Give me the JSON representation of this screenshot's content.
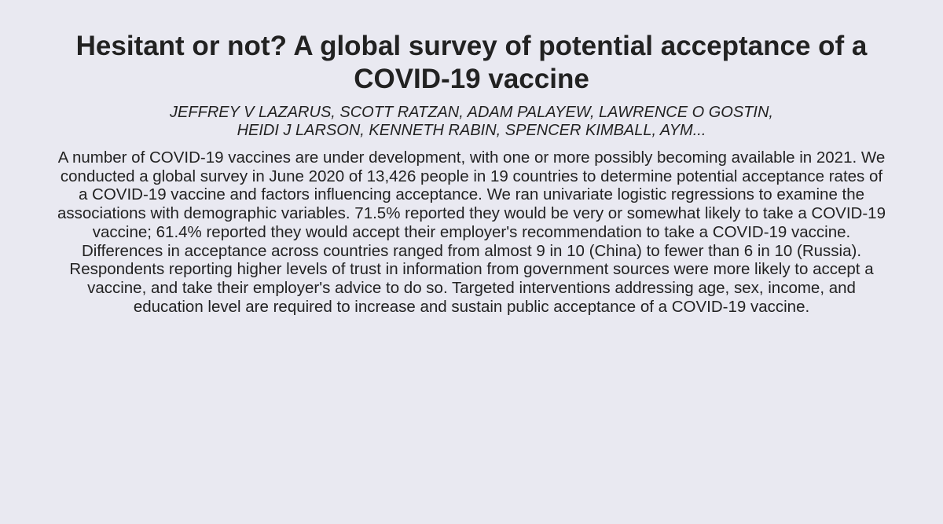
{
  "paper": {
    "title": "Hesitant or not? A global survey of potential acceptance of a COVID-19 vaccine",
    "authors": "JEFFREY V LAZARUS, SCOTT RATZAN, ADAM PALAYEW, LAWRENCE O GOSTIN, HEIDI J LARSON, KENNETH RABIN, SPENCER KIMBALL, AYM...",
    "abstract": "A number of COVID-19 vaccines are under development, with one or more possibly becoming available in 2021. We conducted a global survey in June 2020 of 13,426 people in 19 countries to determine potential acceptance rates of a COVID-19 vaccine and factors influencing acceptance. We ran univariate logistic regressions to examine the associations with demographic variables. 71.5% reported they would be very or somewhat likely to take a COVID-19 vaccine; 61.4% reported they would accept their employer's recommendation to take a COVID-19 vaccine. Differences in acceptance across countries ranged from almost 9 in 10 (China) to fewer than 6 in 10 (Russia). Respondents reporting higher levels of trust in information from government sources were more likely to accept a vaccine, and take their employer's advice to do so. Targeted interventions addressing age, sex, income, and education level are required to increase and sustain public acceptance of a COVID-19 vaccine."
  },
  "colors": {
    "background": "#e9e9f1",
    "text": "#222222"
  }
}
